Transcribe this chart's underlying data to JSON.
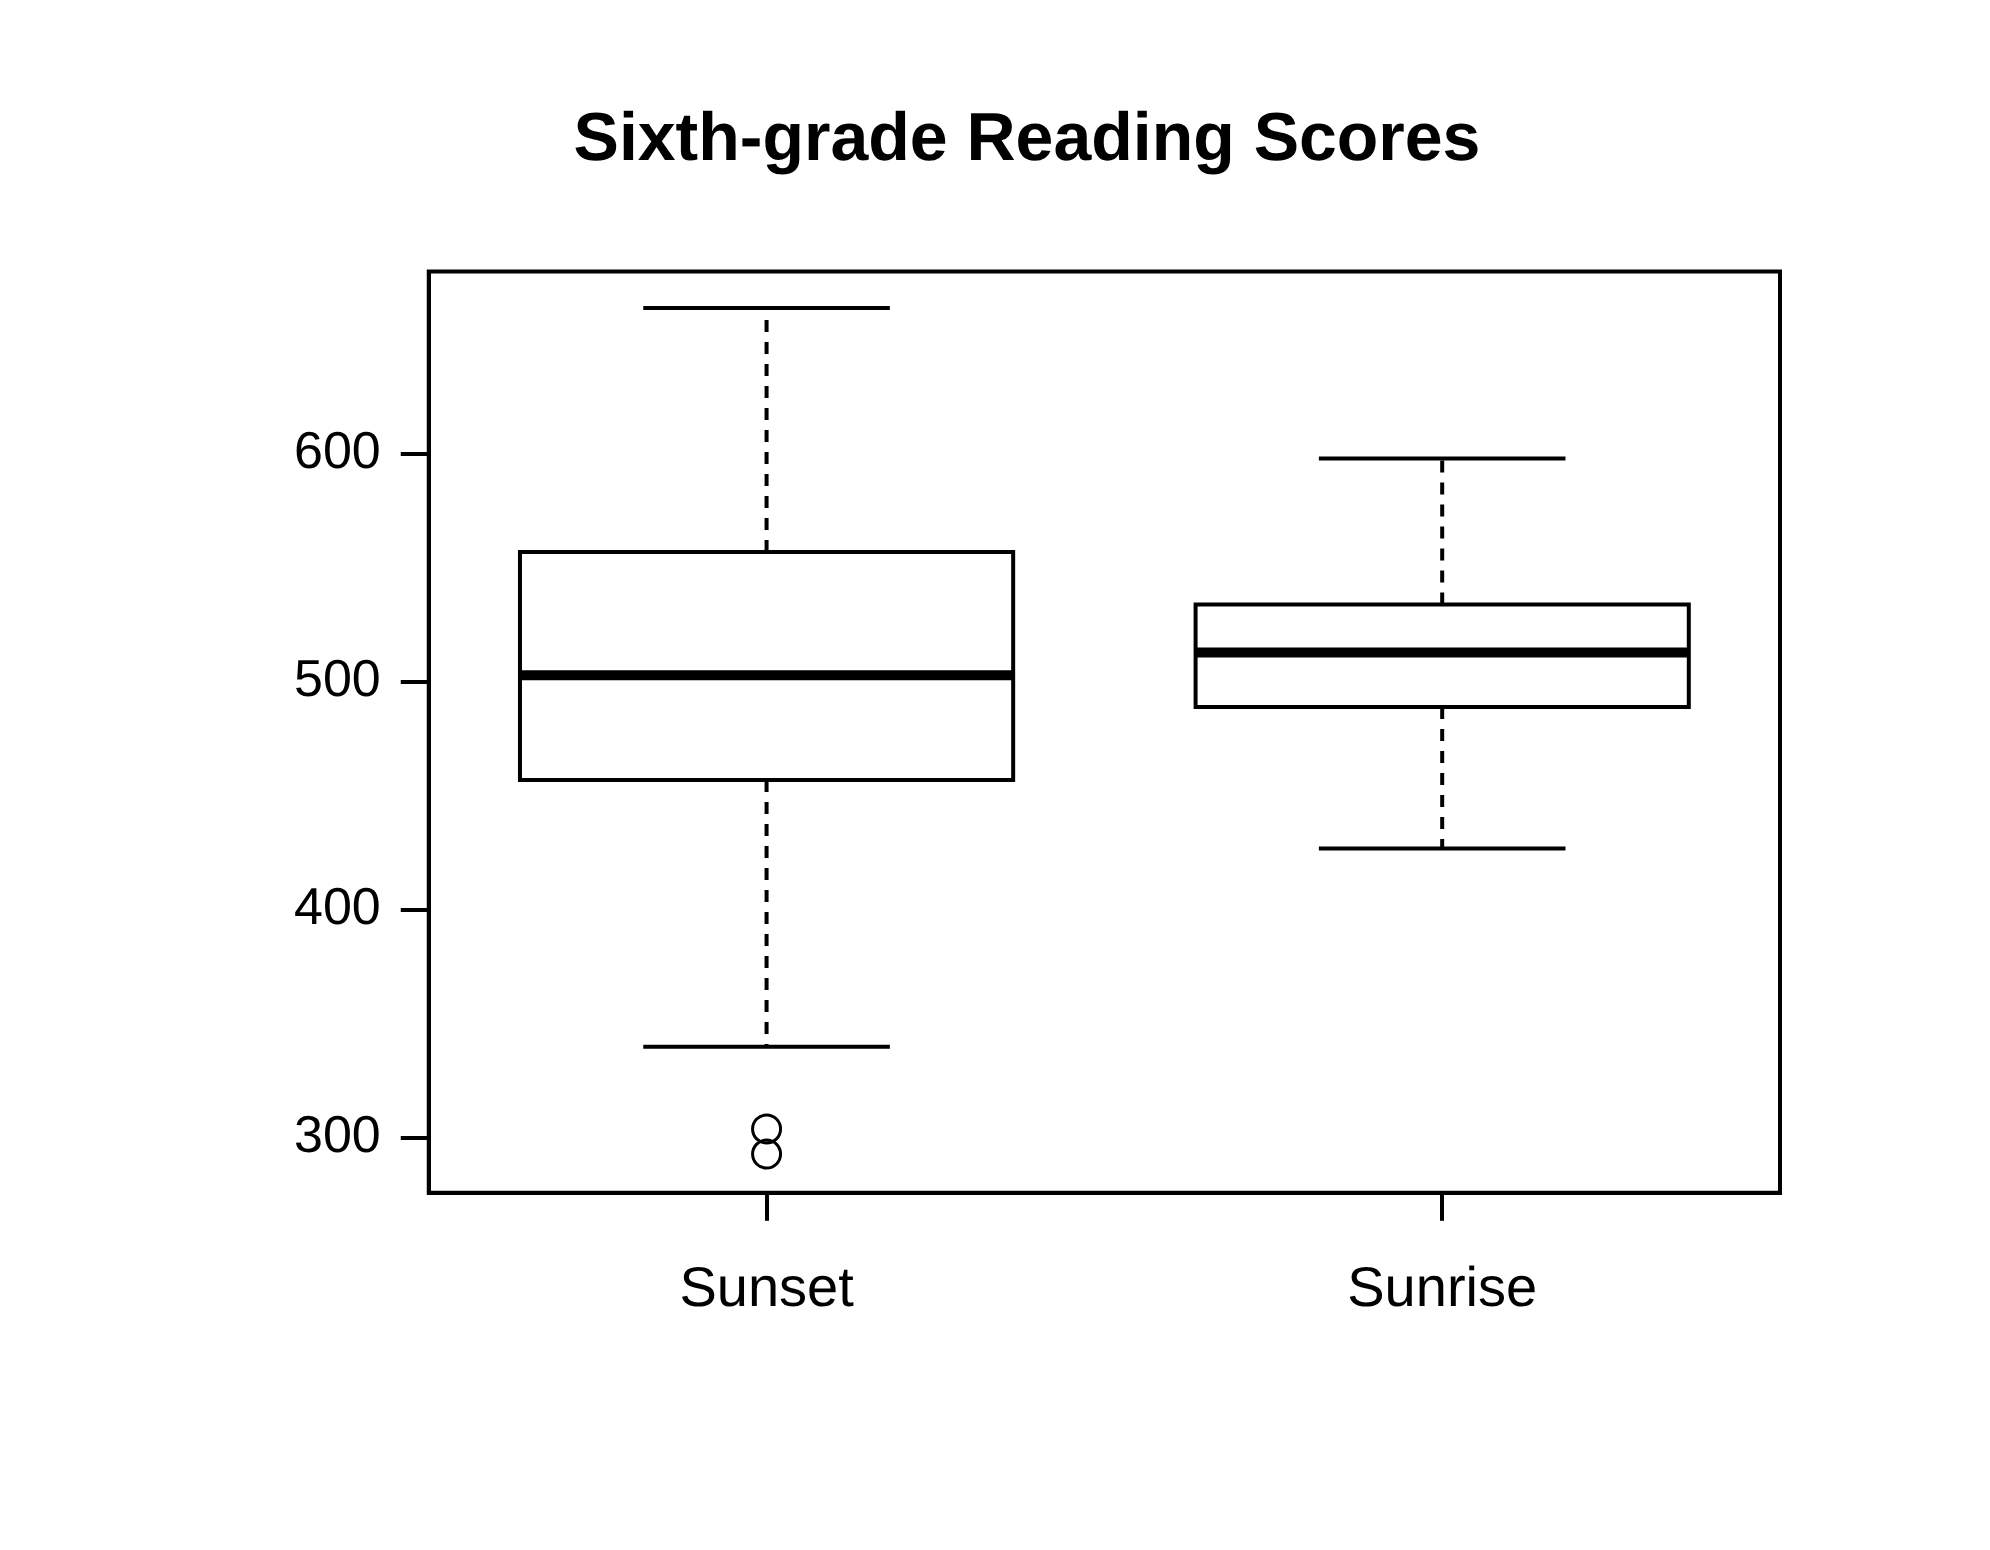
{
  "chart_data": {
    "type": "box",
    "title": "Sixth-grade Reading Scores",
    "categories": [
      "Sunset",
      "Sunrise"
    ],
    "color": "#000000",
    "boxes": [
      {
        "low": 340,
        "q1": 457,
        "median": 503,
        "q3": 557,
        "high": 664,
        "outliers": [
          304,
          293
        ]
      },
      {
        "low": 427,
        "q1": 489,
        "median": 513,
        "q3": 534,
        "high": 598
      }
    ],
    "ylim": [
      276,
      680
    ],
    "yticks": [
      300,
      400,
      500,
      600
    ]
  }
}
